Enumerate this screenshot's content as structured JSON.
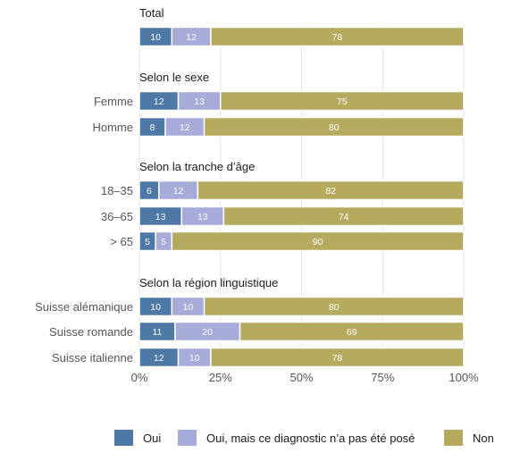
{
  "chart_data": {
    "type": "bar",
    "orientation": "horizontal",
    "stacked": true,
    "xlim": [
      0,
      100
    ],
    "x_ticks": [
      "0%",
      "25%",
      "50%",
      "75%",
      "100%"
    ],
    "grid": true,
    "legend_position": "bottom",
    "groups": [
      {
        "title": "Total",
        "rows": [
          {
            "label": "",
            "values": [
              10,
              12,
              78
            ]
          }
        ]
      },
      {
        "title": "Selon le sexe",
        "rows": [
          {
            "label": "Femme",
            "values": [
              12,
              13,
              75
            ]
          },
          {
            "label": "Homme",
            "values": [
              8,
              12,
              80
            ]
          }
        ]
      },
      {
        "title": "Selon la tranche d’âge",
        "rows": [
          {
            "label": "18–35",
            "values": [
              6,
              12,
              82
            ]
          },
          {
            "label": "36–65",
            "values": [
              13,
              13,
              74
            ]
          },
          {
            "label": "> 65",
            "values": [
              5,
              5,
              90
            ]
          }
        ]
      },
      {
        "title": "Selon la région linguistique",
        "rows": [
          {
            "label": "Suisse alémanique",
            "values": [
              10,
              10,
              80
            ]
          },
          {
            "label": "Suisse romande",
            "values": [
              11,
              20,
              69
            ]
          },
          {
            "label": "Suisse italienne",
            "values": [
              12,
              10,
              78
            ]
          }
        ]
      }
    ],
    "series": [
      {
        "name": "Oui",
        "color": "#4e79a7"
      },
      {
        "name": "Oui, mais ce diagnostic n’a pas été posé",
        "color": "#a6abd9"
      },
      {
        "name": "Non",
        "color": "#b5aa5d"
      }
    ]
  }
}
